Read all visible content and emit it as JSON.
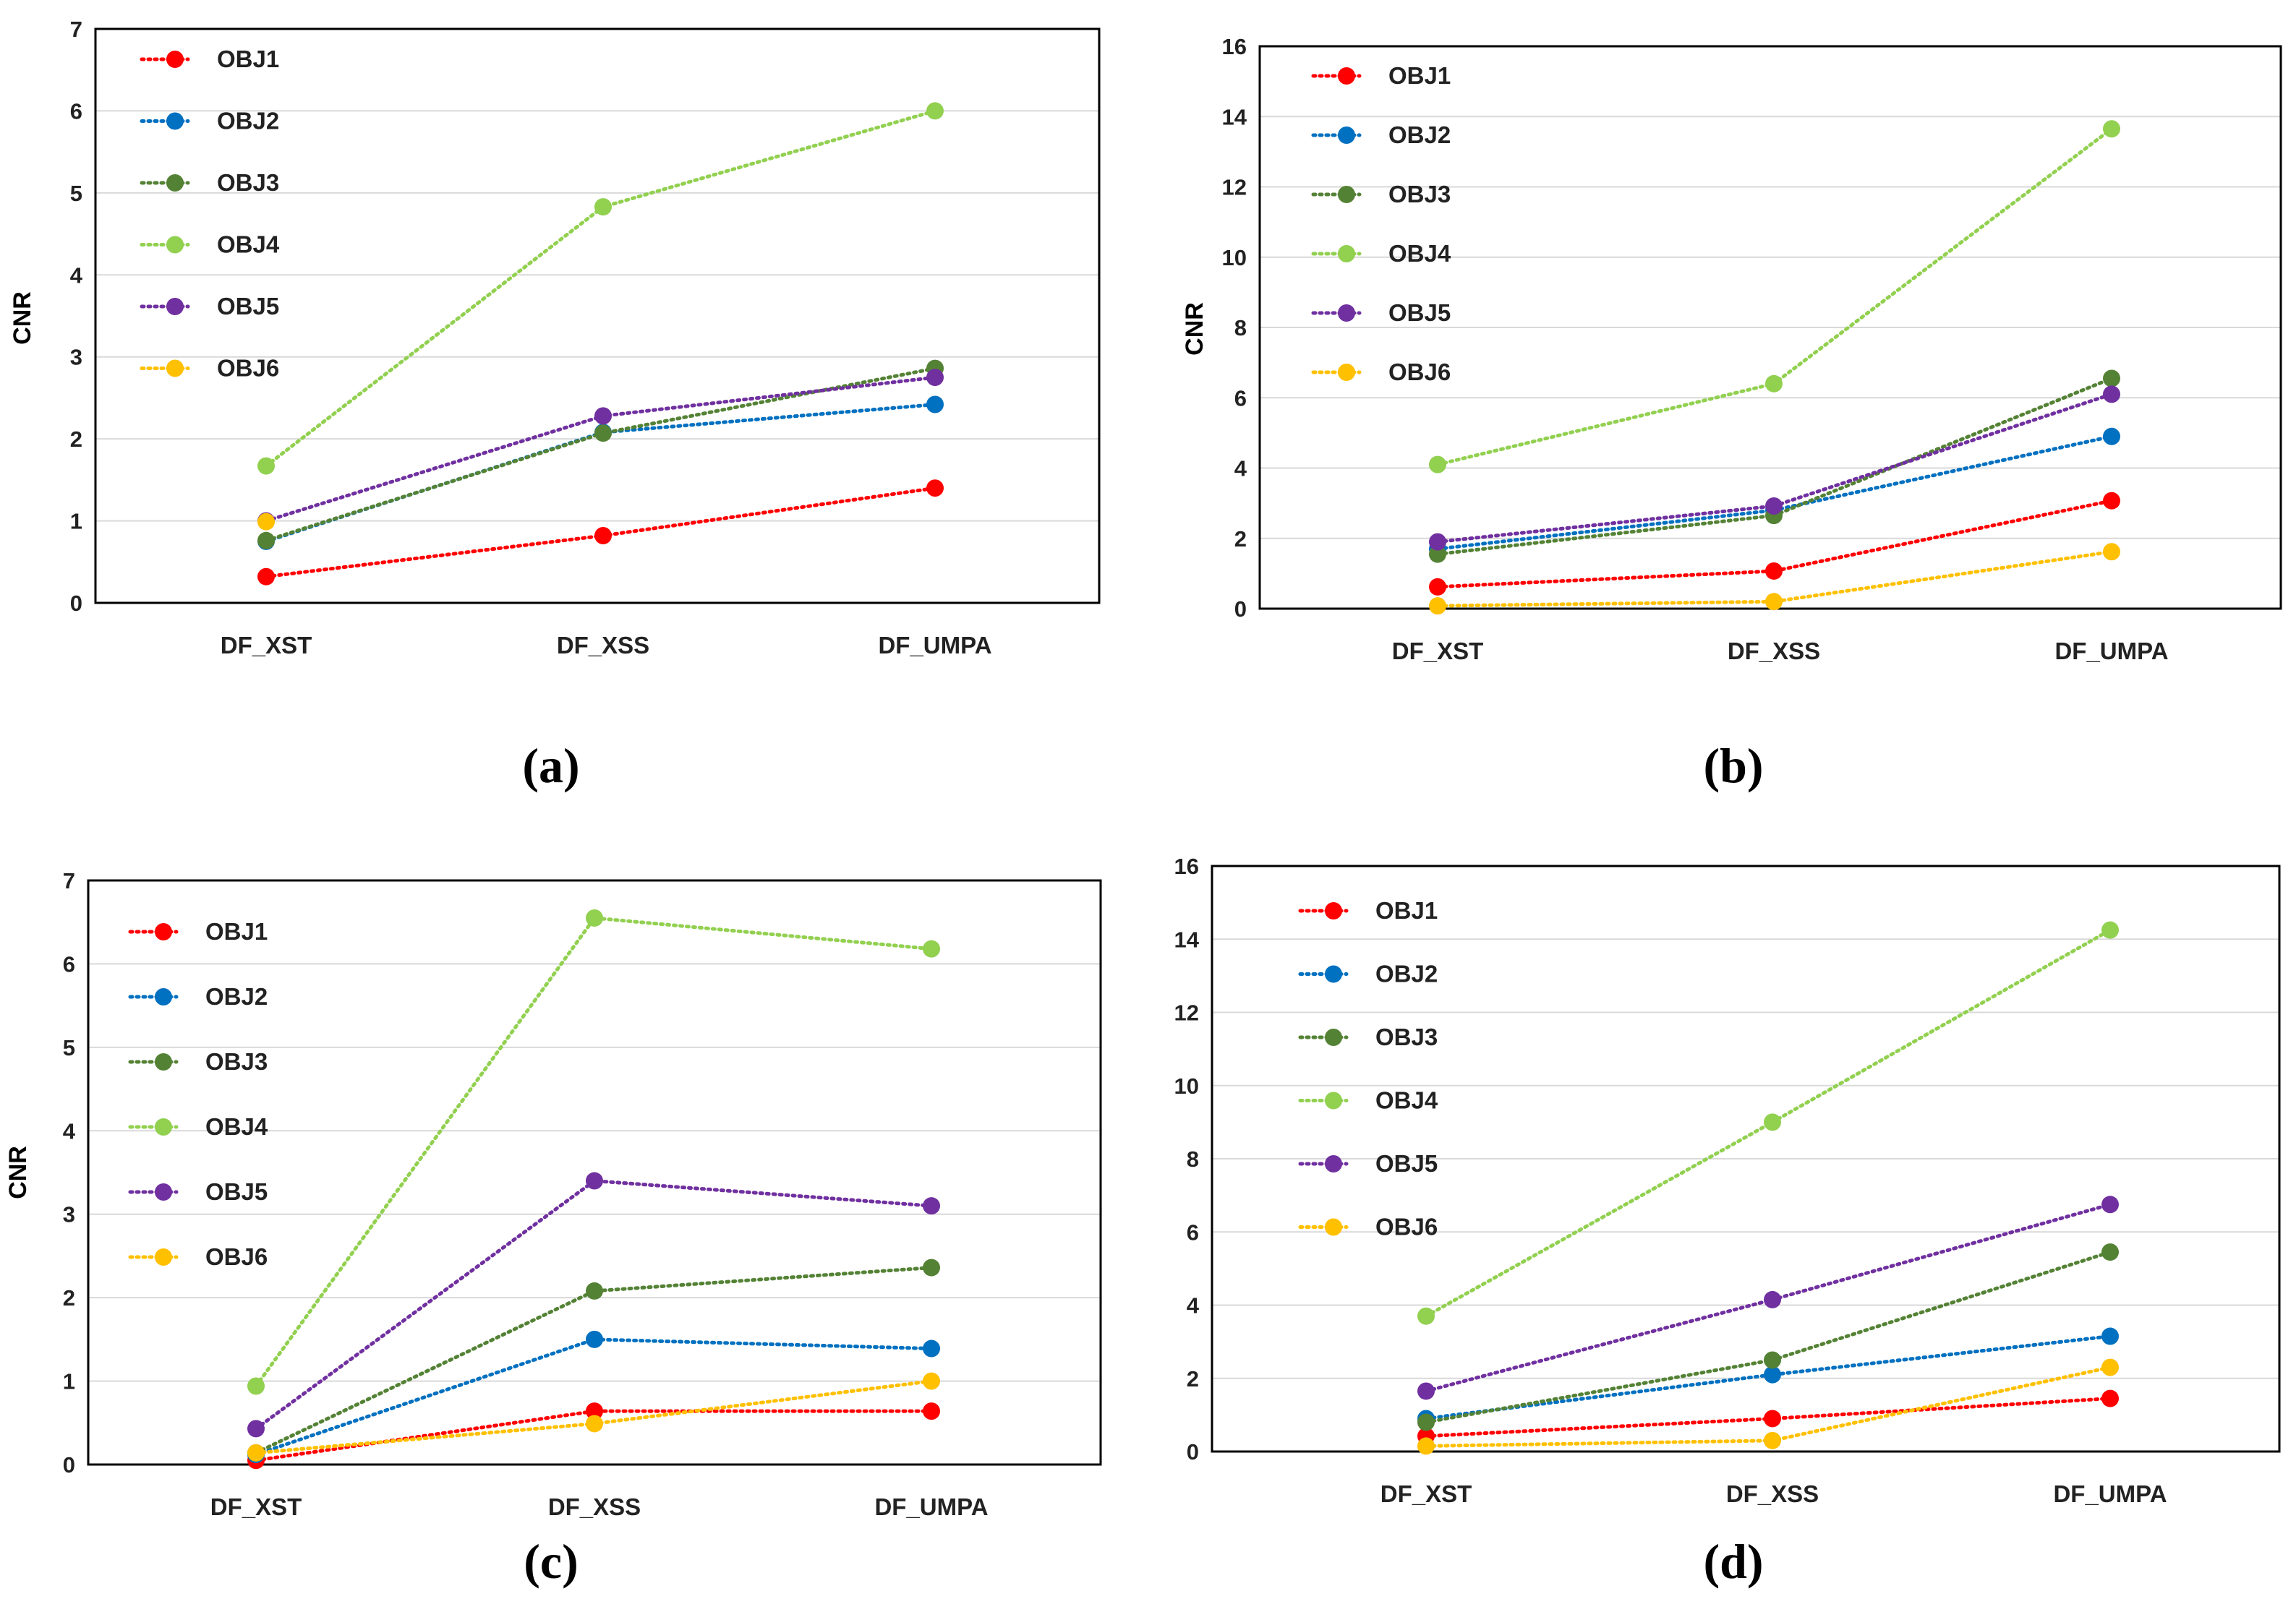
{
  "chart_data": [
    {
      "type": "line",
      "panel_label": "(a)",
      "categories": [
        "DF_XST",
        "DF_XSS",
        "DF_UMPA"
      ],
      "ylabel": "CNR",
      "xlabel": "",
      "ylim": [
        0,
        7
      ],
      "yticks": [
        "0",
        "1",
        "2",
        "3",
        "4",
        "5",
        "6",
        "7"
      ],
      "grid": true,
      "legend_position": "top-left",
      "series": [
        {
          "name": "OBJ1",
          "color": "#ff0000",
          "values": [
            0.32,
            0.82,
            1.4
          ]
        },
        {
          "name": "OBJ2",
          "color": "#0070c0",
          "values": [
            0.75,
            2.08,
            2.42
          ]
        },
        {
          "name": "OBJ3",
          "color": "#548235",
          "values": [
            0.76,
            2.07,
            2.86
          ]
        },
        {
          "name": "OBJ4",
          "color": "#92d050",
          "values": [
            1.67,
            4.83,
            6.0
          ]
        },
        {
          "name": "OBJ5",
          "color": "#7030a0",
          "values": [
            1.0,
            2.28,
            2.75
          ]
        },
        {
          "name": "OBJ6",
          "color": "#ffc000",
          "values": [
            0.99,
            null,
            null
          ]
        }
      ]
    },
    {
      "type": "line",
      "panel_label": "(b)",
      "categories": [
        "DF_XST",
        "DF_XSS",
        "DF_UMPA"
      ],
      "ylabel": "CNR",
      "xlabel": "",
      "ylim": [
        0,
        16
      ],
      "yticks": [
        "0",
        "2",
        "4",
        "6",
        "8",
        "10",
        "12",
        "14",
        "16"
      ],
      "grid": true,
      "legend_position": "top-left",
      "series": [
        {
          "name": "OBJ1",
          "color": "#ff0000",
          "values": [
            0.62,
            1.07,
            3.07
          ]
        },
        {
          "name": "OBJ2",
          "color": "#0070c0",
          "values": [
            1.7,
            2.8,
            4.9
          ]
        },
        {
          "name": "OBJ3",
          "color": "#548235",
          "values": [
            1.55,
            2.65,
            6.55
          ]
        },
        {
          "name": "OBJ4",
          "color": "#92d050",
          "values": [
            4.1,
            6.4,
            13.65
          ]
        },
        {
          "name": "OBJ5",
          "color": "#7030a0",
          "values": [
            1.9,
            2.92,
            6.1
          ]
        },
        {
          "name": "OBJ6",
          "color": "#ffc000",
          "values": [
            0.08,
            0.2,
            1.62
          ]
        }
      ]
    },
    {
      "type": "line",
      "panel_label": "(c)",
      "categories": [
        "DF_XST",
        "DF_XSS",
        "DF_UMPA"
      ],
      "ylabel": "CNR",
      "xlabel": "",
      "ylim": [
        0,
        7
      ],
      "yticks": [
        "0",
        "1",
        "2",
        "3",
        "4",
        "5",
        "6",
        "7"
      ],
      "grid": true,
      "legend_position": "top-left",
      "series": [
        {
          "name": "OBJ1",
          "color": "#ff0000",
          "values": [
            0.05,
            0.64,
            0.64
          ]
        },
        {
          "name": "OBJ2",
          "color": "#0070c0",
          "values": [
            0.12,
            1.5,
            1.39
          ]
        },
        {
          "name": "OBJ3",
          "color": "#548235",
          "values": [
            0.14,
            2.08,
            2.36
          ]
        },
        {
          "name": "OBJ4",
          "color": "#92d050",
          "values": [
            0.94,
            6.55,
            6.18
          ]
        },
        {
          "name": "OBJ5",
          "color": "#7030a0",
          "values": [
            0.43,
            3.4,
            3.1
          ]
        },
        {
          "name": "OBJ6",
          "color": "#ffc000",
          "values": [
            0.14,
            0.49,
            1.0
          ]
        }
      ]
    },
    {
      "type": "line",
      "panel_label": "(d)",
      "categories": [
        "DF_XST",
        "DF_XSS",
        "DF_UMPA"
      ],
      "ylabel": "",
      "xlabel": "",
      "ylim": [
        0,
        16
      ],
      "yticks": [
        "0",
        "2",
        "4",
        "6",
        "8",
        "10",
        "12",
        "14",
        "16"
      ],
      "grid": true,
      "legend_position": "top-left",
      "series": [
        {
          "name": "OBJ1",
          "color": "#ff0000",
          "values": [
            0.42,
            0.9,
            1.45
          ]
        },
        {
          "name": "OBJ2",
          "color": "#0070c0",
          "values": [
            0.9,
            2.1,
            3.15
          ]
        },
        {
          "name": "OBJ3",
          "color": "#548235",
          "values": [
            0.8,
            2.5,
            5.45
          ]
        },
        {
          "name": "OBJ4",
          "color": "#92d050",
          "values": [
            3.7,
            9.0,
            14.25
          ]
        },
        {
          "name": "OBJ5",
          "color": "#7030a0",
          "values": [
            1.65,
            4.15,
            6.75
          ]
        },
        {
          "name": "OBJ6",
          "color": "#ffc000",
          "values": [
            0.15,
            0.3,
            2.3
          ]
        }
      ]
    }
  ]
}
